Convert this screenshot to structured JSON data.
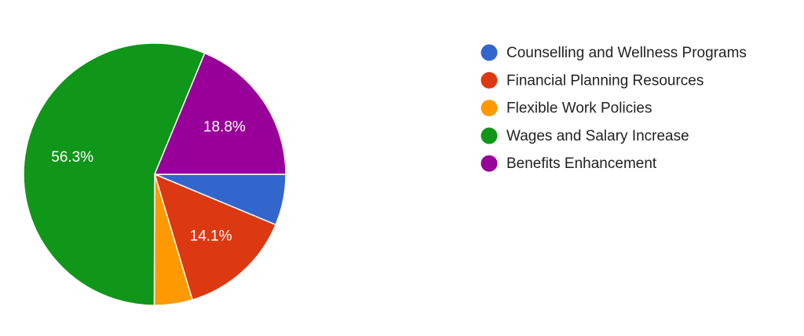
{
  "chart_data": {
    "type": "pie",
    "categories": [
      "Counselling and Wellness Programs",
      "Financial Planning Resources",
      "Flexible Work Policies",
      "Wages and Salary Increase",
      "Benefits Enhancement"
    ],
    "values": [
      6.3,
      14.1,
      4.7,
      56.3,
      18.8
    ],
    "value_labels": [
      null,
      "14.1%",
      null,
      "56.3%",
      "18.8%"
    ],
    "colors": [
      "#3366cc",
      "#dc3912",
      "#ff9900",
      "#109618",
      "#990099"
    ],
    "legend": "right"
  }
}
